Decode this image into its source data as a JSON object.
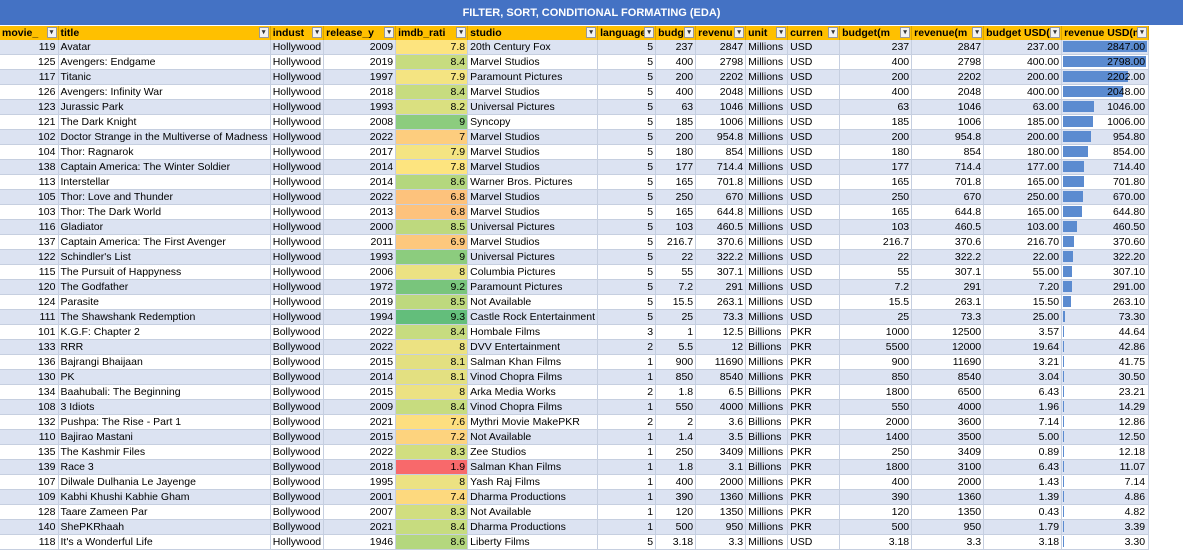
{
  "sheet_title": "FILTER, SORT, CONDITIONAL FORMATING (EDA)",
  "headers": [
    "movie_",
    "title",
    "indust",
    "release_y",
    "imdb_rati",
    "studio",
    "language_",
    "budg",
    "revenu",
    "unit",
    "curren",
    "budget(m",
    "revenue(m",
    "budget USD(m",
    "revenue USD(m"
  ],
  "colors": {
    "header_bg": "#ffc000",
    "title_bg": "#4472c4",
    "band": "#dce3f2",
    "databar": "#5b8bd0"
  },
  "rows": [
    {
      "id": "119",
      "title": "Avatar",
      "industry": "Hollywood",
      "year": "2009",
      "imdb": "7.8",
      "studio": "20th Century Fox",
      "lang": "5",
      "budget": "237",
      "revenue": "2847",
      "unit": "Millions",
      "currency": "USD",
      "budget_m": "237",
      "revenue_m": "2847",
      "budget_usd": "237.00",
      "revenue_usd": "2847.00",
      "imdb_color": "#fde47f"
    },
    {
      "id": "125",
      "title": "Avengers: Endgame",
      "industry": "Hollywood",
      "year": "2019",
      "imdb": "8.4",
      "studio": "Marvel Studios",
      "lang": "5",
      "budget": "400",
      "revenue": "2798",
      "unit": "Millions",
      "currency": "USD",
      "budget_m": "400",
      "revenue_m": "2798",
      "budget_usd": "400.00",
      "revenue_usd": "2798.00",
      "imdb_color": "#c7dc7f"
    },
    {
      "id": "117",
      "title": "Titanic",
      "industry": "Hollywood",
      "year": "1997",
      "imdb": "7.9",
      "studio": "Paramount Pictures",
      "lang": "5",
      "budget": "200",
      "revenue": "2202",
      "unit": "Millions",
      "currency": "USD",
      "budget_m": "200",
      "revenue_m": "2202",
      "budget_usd": "200.00",
      "revenue_usd": "2202.00",
      "imdb_color": "#f4e482"
    },
    {
      "id": "126",
      "title": "Avengers: Infinity War",
      "industry": "Hollywood",
      "year": "2018",
      "imdb": "8.4",
      "studio": "Marvel Studios",
      "lang": "5",
      "budget": "400",
      "revenue": "2048",
      "unit": "Millions",
      "currency": "USD",
      "budget_m": "400",
      "revenue_m": "2048",
      "budget_usd": "400.00",
      "revenue_usd": "2048.00",
      "imdb_color": "#c7dc7f"
    },
    {
      "id": "123",
      "title": "Jurassic Park",
      "industry": "Hollywood",
      "year": "1993",
      "imdb": "8.2",
      "studio": "Universal Pictures",
      "lang": "5",
      "budget": "63",
      "revenue": "1046",
      "unit": "Millions",
      "currency": "USD",
      "budget_m": "63",
      "revenue_m": "1046",
      "budget_usd": "63.00",
      "revenue_usd": "1046.00",
      "imdb_color": "#dae080"
    },
    {
      "id": "121",
      "title": "The Dark Knight",
      "industry": "Hollywood",
      "year": "2008",
      "imdb": "9",
      "studio": "Syncopy",
      "lang": "5",
      "budget": "185",
      "revenue": "1006",
      "unit": "Millions",
      "currency": "USD",
      "budget_m": "185",
      "revenue_m": "1006",
      "budget_usd": "185.00",
      "revenue_usd": "1006.00",
      "imdb_color": "#8ccc7e"
    },
    {
      "id": "102",
      "title": "Doctor Strange in the Multiverse of Madness",
      "industry": "Hollywood",
      "year": "2022",
      "imdb": "7",
      "studio": "Marvel Studios",
      "lang": "5",
      "budget": "200",
      "revenue": "954.8",
      "unit": "Millions",
      "currency": "USD",
      "budget_m": "200",
      "revenue_m": "954.8",
      "budget_usd": "200.00",
      "revenue_usd": "954.80",
      "imdb_color": "#fdcd7e"
    },
    {
      "id": "104",
      "title": "Thor: Ragnarok",
      "industry": "Hollywood",
      "year": "2017",
      "imdb": "7.9",
      "studio": "Marvel Studios",
      "lang": "5",
      "budget": "180",
      "revenue": "854",
      "unit": "Millions",
      "currency": "USD",
      "budget_m": "180",
      "revenue_m": "854",
      "budget_usd": "180.00",
      "revenue_usd": "854.00",
      "imdb_color": "#f4e482"
    },
    {
      "id": "138",
      "title": "Captain America: The Winter Soldier",
      "industry": "Hollywood",
      "year": "2014",
      "imdb": "7.8",
      "studio": "Marvel Studios",
      "lang": "5",
      "budget": "177",
      "revenue": "714.4",
      "unit": "Millions",
      "currency": "USD",
      "budget_m": "177",
      "revenue_m": "714.4",
      "budget_usd": "177.00",
      "revenue_usd": "714.40",
      "imdb_color": "#fde47f"
    },
    {
      "id": "113",
      "title": "Interstellar",
      "industry": "Hollywood",
      "year": "2014",
      "imdb": "8.6",
      "studio": "Warner Bros. Pictures",
      "lang": "5",
      "budget": "165",
      "revenue": "701.8",
      "unit": "Millions",
      "currency": "USD",
      "budget_m": "165",
      "revenue_m": "701.8",
      "budget_usd": "165.00",
      "revenue_usd": "701.80",
      "imdb_color": "#b4d77e"
    },
    {
      "id": "105",
      "title": "Thor: Love and Thunder",
      "industry": "Hollywood",
      "year": "2022",
      "imdb": "6.8",
      "studio": "Marvel Studios",
      "lang": "5",
      "budget": "250",
      "revenue": "670",
      "unit": "Millions",
      "currency": "USD",
      "budget_m": "250",
      "revenue_m": "670",
      "budget_usd": "250.00",
      "revenue_usd": "670.00",
      "imdb_color": "#fdc27c"
    },
    {
      "id": "103",
      "title": "Thor: The Dark World",
      "industry": "Hollywood",
      "year": "2013",
      "imdb": "6.8",
      "studio": "Marvel Studios",
      "lang": "5",
      "budget": "165",
      "revenue": "644.8",
      "unit": "Millions",
      "currency": "USD",
      "budget_m": "165",
      "revenue_m": "644.8",
      "budget_usd": "165.00",
      "revenue_usd": "644.80",
      "imdb_color": "#fdc27c"
    },
    {
      "id": "116",
      "title": "Gladiator",
      "industry": "Hollywood",
      "year": "2000",
      "imdb": "8.5",
      "studio": "Universal Pictures",
      "lang": "5",
      "budget": "103",
      "revenue": "460.5",
      "unit": "Millions",
      "currency": "USD",
      "budget_m": "103",
      "revenue_m": "460.5",
      "budget_usd": "103.00",
      "revenue_usd": "460.50",
      "imdb_color": "#bed97e"
    },
    {
      "id": "137",
      "title": "Captain America: The First Avenger",
      "industry": "Hollywood",
      "year": "2011",
      "imdb": "6.9",
      "studio": "Marvel Studios",
      "lang": "5",
      "budget": "216.7",
      "revenue": "370.6",
      "unit": "Millions",
      "currency": "USD",
      "budget_m": "216.7",
      "revenue_m": "370.6",
      "budget_usd": "216.70",
      "revenue_usd": "370.60",
      "imdb_color": "#fdc87d"
    },
    {
      "id": "122",
      "title": "Schindler's List",
      "industry": "Hollywood",
      "year": "1993",
      "imdb": "9",
      "studio": "Universal Pictures",
      "lang": "5",
      "budget": "22",
      "revenue": "322.2",
      "unit": "Millions",
      "currency": "USD",
      "budget_m": "22",
      "revenue_m": "322.2",
      "budget_usd": "22.00",
      "revenue_usd": "322.20",
      "imdb_color": "#8ccc7e"
    },
    {
      "id": "115",
      "title": "The Pursuit of Happyness",
      "industry": "Hollywood",
      "year": "2006",
      "imdb": "8",
      "studio": "Columbia Pictures",
      "lang": "5",
      "budget": "55",
      "revenue": "307.1",
      "unit": "Millions",
      "currency": "USD",
      "budget_m": "55",
      "revenue_m": "307.1",
      "budget_usd": "55.00",
      "revenue_usd": "307.10",
      "imdb_color": "#ece282"
    },
    {
      "id": "120",
      "title": "The Godfather",
      "industry": "Hollywood",
      "year": "1972",
      "imdb": "9.2",
      "studio": "Paramount Pictures",
      "lang": "5",
      "budget": "7.2",
      "revenue": "291",
      "unit": "Millions",
      "currency": "USD",
      "budget_m": "7.2",
      "revenue_m": "291",
      "budget_usd": "7.20",
      "revenue_usd": "291.00",
      "imdb_color": "#79c57c"
    },
    {
      "id": "124",
      "title": "Parasite",
      "industry": "Hollywood",
      "year": "2019",
      "imdb": "8.5",
      "studio": "Not Available",
      "lang": "5",
      "budget": "15.5",
      "revenue": "263.1",
      "unit": "Millions",
      "currency": "USD",
      "budget_m": "15.5",
      "revenue_m": "263.1",
      "budget_usd": "15.50",
      "revenue_usd": "263.10",
      "imdb_color": "#bed97e"
    },
    {
      "id": "111",
      "title": "The Shawshank Redemption",
      "industry": "Hollywood",
      "year": "1994",
      "imdb": "9.3",
      "studio": "Castle Rock Entertainment",
      "lang": "5",
      "budget": "25",
      "revenue": "73.3",
      "unit": "Millions",
      "currency": "USD",
      "budget_m": "25",
      "revenue_m": "73.3",
      "budget_usd": "25.00",
      "revenue_usd": "73.30",
      "imdb_color": "#63be7b"
    },
    {
      "id": "101",
      "title": "K.G.F: Chapter 2",
      "industry": "Bollywood",
      "year": "2022",
      "imdb": "8.4",
      "studio": "Hombale Films",
      "lang": "3",
      "budget": "1",
      "revenue": "12.5",
      "unit": "Billions",
      "currency": "PKR",
      "budget_m": "1000",
      "revenue_m": "12500",
      "budget_usd": "3.57",
      "revenue_usd": "44.64",
      "imdb_color": "#c7dc7f"
    },
    {
      "id": "133",
      "title": "RRR",
      "industry": "Bollywood",
      "year": "2022",
      "imdb": "8",
      "studio": "DVV Entertainment",
      "lang": "2",
      "budget": "5.5",
      "revenue": "12",
      "unit": "Billions",
      "currency": "PKR",
      "budget_m": "5500",
      "revenue_m": "12000",
      "budget_usd": "19.64",
      "revenue_usd": "42.86",
      "imdb_color": "#ece282"
    },
    {
      "id": "136",
      "title": "Bajrangi Bhaijaan",
      "industry": "Bollywood",
      "year": "2015",
      "imdb": "8.1",
      "studio": "Salman Khan Films",
      "lang": "1",
      "budget": "900",
      "revenue": "11690",
      "unit": "Millions",
      "currency": "PKR",
      "budget_m": "900",
      "revenue_m": "11690",
      "budget_usd": "3.21",
      "revenue_usd": "41.75",
      "imdb_color": "#e3e081"
    },
    {
      "id": "130",
      "title": "PK",
      "industry": "Bollywood",
      "year": "2014",
      "imdb": "8.1",
      "studio": "Vinod Chopra Films",
      "lang": "1",
      "budget": "850",
      "revenue": "8540",
      "unit": "Millions",
      "currency": "PKR",
      "budget_m": "850",
      "revenue_m": "8540",
      "budget_usd": "3.04",
      "revenue_usd": "30.50",
      "imdb_color": "#e3e081"
    },
    {
      "id": "134",
      "title": "Baahubali: The Beginning",
      "industry": "Bollywood",
      "year": "2015",
      "imdb": "8",
      "studio": "Arka Media Works",
      "lang": "2",
      "budget": "1.8",
      "revenue": "6.5",
      "unit": "Billions",
      "currency": "PKR",
      "budget_m": "1800",
      "revenue_m": "6500",
      "budget_usd": "6.43",
      "revenue_usd": "23.21",
      "imdb_color": "#ece282"
    },
    {
      "id": "108",
      "title": "3 Idiots",
      "industry": "Bollywood",
      "year": "2009",
      "imdb": "8.4",
      "studio": "Vinod Chopra Films",
      "lang": "1",
      "budget": "550",
      "revenue": "4000",
      "unit": "Millions",
      "currency": "PKR",
      "budget_m": "550",
      "revenue_m": "4000",
      "budget_usd": "1.96",
      "revenue_usd": "14.29",
      "imdb_color": "#c7dc7f"
    },
    {
      "id": "132",
      "title": "Pushpa: The Rise - Part 1",
      "industry": "Bollywood",
      "year": "2021",
      "imdb": "7.6",
      "studio": "Mythri Movie MakePKR",
      "lang": "2",
      "budget": "2",
      "revenue": "3.6",
      "unit": "Billions",
      "currency": "PKR",
      "budget_m": "2000",
      "revenue_m": "3600",
      "budget_usd": "7.14",
      "revenue_usd": "12.86",
      "imdb_color": "#fddf7f"
    },
    {
      "id": "110",
      "title": "Bajirao Mastani",
      "industry": "Bollywood",
      "year": "2015",
      "imdb": "7.2",
      "studio": "Not Available",
      "lang": "1",
      "budget": "1.4",
      "revenue": "3.5",
      "unit": "Billions",
      "currency": "PKR",
      "budget_m": "1400",
      "revenue_m": "3500",
      "budget_usd": "5.00",
      "revenue_usd": "12.50",
      "imdb_color": "#fdd37e"
    },
    {
      "id": "135",
      "title": "The Kashmir Files",
      "industry": "Bollywood",
      "year": "2022",
      "imdb": "8.3",
      "studio": "Zee Studios",
      "lang": "1",
      "budget": "250",
      "revenue": "3409",
      "unit": "Millions",
      "currency": "PKR",
      "budget_m": "250",
      "revenue_m": "3409",
      "budget_usd": "0.89",
      "revenue_usd": "12.18",
      "imdb_color": "#d1de80"
    },
    {
      "id": "139",
      "title": "Race 3",
      "industry": "Bollywood",
      "year": "2018",
      "imdb": "1.9",
      "studio": "Salman Khan Films",
      "lang": "1",
      "budget": "1.8",
      "revenue": "3.1",
      "unit": "Billions",
      "currency": "PKR",
      "budget_m": "1800",
      "revenue_m": "3100",
      "budget_usd": "6.43",
      "revenue_usd": "11.07",
      "imdb_color": "#f8696b"
    },
    {
      "id": "107",
      "title": "Dilwale Dulhania Le Jayenge",
      "industry": "Bollywood",
      "year": "1995",
      "imdb": "8",
      "studio": "Yash Raj Films",
      "lang": "1",
      "budget": "400",
      "revenue": "2000",
      "unit": "Millions",
      "currency": "PKR",
      "budget_m": "400",
      "revenue_m": "2000",
      "budget_usd": "1.43",
      "revenue_usd": "7.14",
      "imdb_color": "#ece282"
    },
    {
      "id": "109",
      "title": "Kabhi Khushi Kabhie Gham",
      "industry": "Bollywood",
      "year": "2001",
      "imdb": "7.4",
      "studio": "Dharma Productions",
      "lang": "1",
      "budget": "390",
      "revenue": "1360",
      "unit": "Millions",
      "currency": "PKR",
      "budget_m": "390",
      "revenue_m": "1360",
      "budget_usd": "1.39",
      "revenue_usd": "4.86",
      "imdb_color": "#fdd97e"
    },
    {
      "id": "128",
      "title": "Taare Zameen Par",
      "industry": "Bollywood",
      "year": "2007",
      "imdb": "8.3",
      "studio": "Not Available",
      "lang": "1",
      "budget": "120",
      "revenue": "1350",
      "unit": "Millions",
      "currency": "PKR",
      "budget_m": "120",
      "revenue_m": "1350",
      "budget_usd": "0.43",
      "revenue_usd": "4.82",
      "imdb_color": "#d1de80"
    },
    {
      "id": "140",
      "title": "ShePKRhaah",
      "industry": "Bollywood",
      "year": "2021",
      "imdb": "8.4",
      "studio": "Dharma Productions",
      "lang": "1",
      "budget": "500",
      "revenue": "950",
      "unit": "Millions",
      "currency": "PKR",
      "budget_m": "500",
      "revenue_m": "950",
      "budget_usd": "1.79",
      "revenue_usd": "3.39",
      "imdb_color": "#c7dc7f"
    },
    {
      "id": "118",
      "title": "It's a Wonderful Life",
      "industry": "Hollywood",
      "year": "1946",
      "imdb": "8.6",
      "studio": "Liberty Films",
      "lang": "5",
      "budget": "3.18",
      "revenue": "3.3",
      "unit": "Millions",
      "currency": "USD",
      "budget_m": "3.18",
      "revenue_m": "3.3",
      "budget_usd": "3.18",
      "revenue_usd": "3.30",
      "imdb_color": "#b4d77e"
    }
  ],
  "revenue_usd_max": 2847
}
